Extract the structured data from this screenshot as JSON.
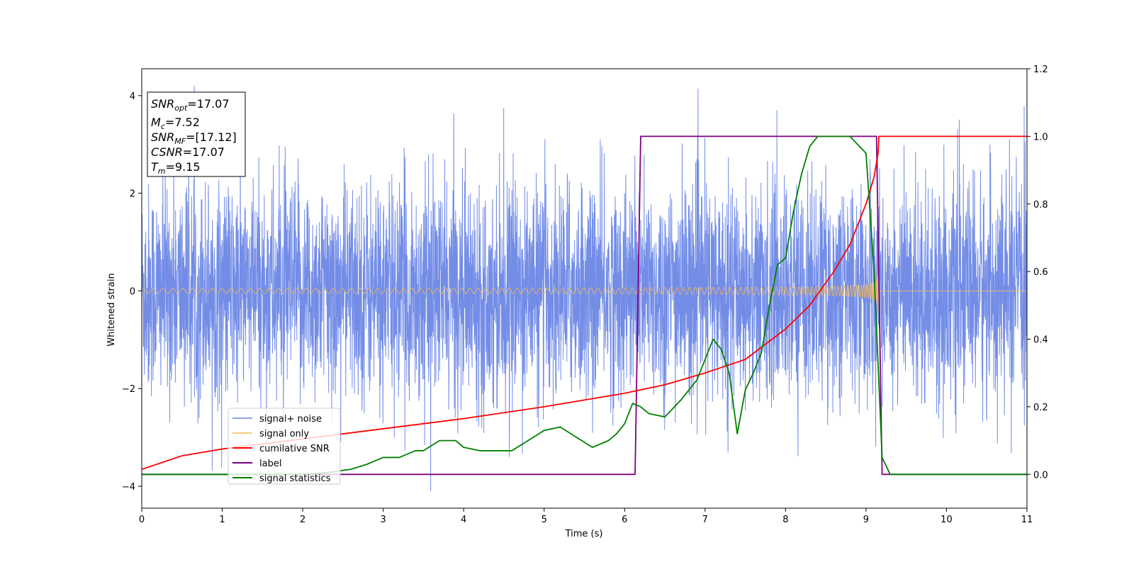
{
  "chart_data": {
    "type": "line",
    "title": "",
    "xlabel": "Time (s)",
    "ylabel": "Whitened strain",
    "xlim": [
      0,
      11
    ],
    "ylim": [
      -4.45,
      4.55
    ],
    "y2lim": [
      -0.1,
      1.2
    ],
    "x_ticks": [
      0,
      1,
      2,
      3,
      4,
      5,
      6,
      7,
      8,
      9,
      10,
      11
    ],
    "y_ticks": [
      -4,
      -2,
      0,
      2,
      4
    ],
    "y_tick_labels": [
      "−4",
      "−2",
      "0",
      "2",
      "4"
    ],
    "y2_ticks": [
      0.0,
      0.2,
      0.4,
      0.6,
      0.8,
      1.0,
      1.2
    ],
    "y2_tick_labels": [
      "0.0",
      "0.2",
      "0.4",
      "0.6",
      "0.8",
      "1.0",
      "1.2"
    ],
    "grid": false,
    "legend_position": "lower-left",
    "series": [
      {
        "name": "signal+ noise",
        "axis": "left",
        "color": "#6b87e6",
        "note": "whitened strain: Gaussian-like noise with amplitude ~1.1, occasional spikes up to ~4.2, plus the chirp signal; extends full 0-11 s",
        "noise_sigma": 1.1
      },
      {
        "name": "signal only",
        "axis": "left",
        "color": "#f5b75d",
        "chirp": {
          "start": 0,
          "end": 9.15,
          "amp_start": 0.05,
          "amp_end": 1.05,
          "zero_after": 9.15
        }
      },
      {
        "name": "cumilative SNR",
        "axis": "right",
        "color": "#ff0000",
        "x": [
          0,
          0.5,
          1,
          2,
          3,
          4,
          5,
          6,
          6.5,
          7,
          7.5,
          8,
          8.3,
          8.6,
          8.8,
          9.0,
          9.1,
          9.15,
          9.16,
          11
        ],
        "y": [
          0.015,
          0.055,
          0.075,
          0.105,
          0.135,
          0.165,
          0.2,
          0.24,
          0.265,
          0.3,
          0.34,
          0.43,
          0.5,
          0.6,
          0.68,
          0.8,
          0.88,
          0.95,
          1.0,
          1.0
        ]
      },
      {
        "name": "label",
        "axis": "right",
        "color": "#800080",
        "x": [
          0,
          6.13,
          6.2,
          9.13,
          9.2,
          11
        ],
        "y": [
          0,
          0,
          1,
          1,
          0,
          0
        ]
      },
      {
        "name": "signal statistics",
        "axis": "right",
        "color": "#008000",
        "x": [
          0,
          0.5,
          1,
          1.5,
          2,
          2.3,
          2.6,
          2.8,
          3.0,
          3.2,
          3.4,
          3.5,
          3.7,
          3.8,
          3.9,
          4.0,
          4.2,
          4.4,
          4.6,
          4.8,
          5.0,
          5.2,
          5.4,
          5.6,
          5.8,
          5.9,
          6.0,
          6.1,
          6.2,
          6.3,
          6.5,
          6.7,
          6.9,
          7.0,
          7.1,
          7.2,
          7.3,
          7.4,
          7.5,
          7.6,
          7.7,
          7.8,
          7.9,
          8.0,
          8.1,
          8.2,
          8.3,
          8.4,
          8.6,
          8.8,
          9.0,
          9.1,
          9.2,
          9.3,
          9.5,
          10,
          11
        ],
        "y": [
          0.0,
          0.0,
          0.0,
          0.0,
          0.0,
          0.005,
          0.015,
          0.03,
          0.05,
          0.05,
          0.07,
          0.07,
          0.1,
          0.1,
          0.1,
          0.08,
          0.07,
          0.07,
          0.07,
          0.1,
          0.13,
          0.14,
          0.11,
          0.08,
          0.1,
          0.12,
          0.15,
          0.21,
          0.2,
          0.18,
          0.17,
          0.22,
          0.28,
          0.34,
          0.4,
          0.37,
          0.3,
          0.12,
          0.25,
          0.3,
          0.36,
          0.5,
          0.62,
          0.64,
          0.78,
          0.89,
          0.97,
          1.0,
          1.0,
          1.0,
          0.95,
          0.6,
          0.05,
          0.0,
          0.0,
          0.0,
          0.0
        ]
      }
    ],
    "annotations": {
      "snr_opt": "=17.07",
      "mc": "=7.52",
      "snr_mf": "=[17.12]",
      "csnr": "=17.07",
      "tm": "=9.15"
    }
  },
  "labels": {
    "snr_opt_main": "SNR",
    "snr_opt_sub": "opt",
    "mc_main": "M",
    "mc_sub": "c",
    "snr_mf_main": "SNR",
    "snr_mf_sub": "MF",
    "csnr_main": "CSNR",
    "tm_main": "T",
    "tm_sub": "m"
  }
}
